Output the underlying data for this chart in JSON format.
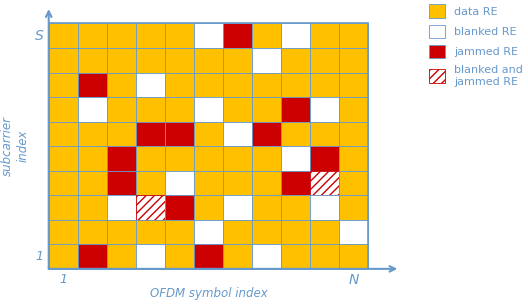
{
  "nrows": 10,
  "ncols": 11,
  "orange_color": "#FFC000",
  "white_color": "#FFFFFF",
  "red_color": "#CC0000",
  "hatch_color": "#CC0000",
  "grid_color": "#6699CC",
  "axis_color": "#6699CC",
  "font_color": "#6699CC",
  "cell_types": [
    [
      "O",
      "O",
      "O",
      "O",
      "O",
      "W",
      "R",
      "O",
      "W",
      "O",
      "O"
    ],
    [
      "O",
      "O",
      "O",
      "O",
      "O",
      "O",
      "O",
      "W",
      "O",
      "O",
      "O"
    ],
    [
      "O",
      "R",
      "O",
      "W",
      "O",
      "O",
      "O",
      "O",
      "O",
      "O",
      "O"
    ],
    [
      "O",
      "W",
      "O",
      "O",
      "O",
      "W",
      "O",
      "O",
      "R",
      "W",
      "O"
    ],
    [
      "O",
      "O",
      "O",
      "R",
      "R",
      "O",
      "W",
      "R",
      "O",
      "O",
      "O"
    ],
    [
      "O",
      "O",
      "R",
      "O",
      "O",
      "O",
      "O",
      "O",
      "W",
      "R",
      "O"
    ],
    [
      "O",
      "O",
      "R",
      "O",
      "W",
      "O",
      "O",
      "O",
      "R",
      "H",
      "O"
    ],
    [
      "O",
      "O",
      "W",
      "H",
      "R",
      "O",
      "W",
      "O",
      "O",
      "W",
      "O"
    ],
    [
      "O",
      "O",
      "O",
      "O",
      "O",
      "W",
      "O",
      "O",
      "O",
      "O",
      "W"
    ],
    [
      "O",
      "R",
      "O",
      "W",
      "O",
      "R",
      "O",
      "W",
      "O",
      "O",
      "O"
    ]
  ],
  "legend_labels": [
    "data RE",
    "blanked RE",
    "jammed RE",
    "blanked and\njammed RE"
  ],
  "legend_colors": [
    "#FFC000",
    "#FFFFFF",
    "#CC0000",
    "#FFFFFF"
  ],
  "legend_hatches": [
    null,
    null,
    null,
    "////"
  ],
  "xlabel": "OFDM symbol index",
  "ylabel": "subcarrier\nindex"
}
